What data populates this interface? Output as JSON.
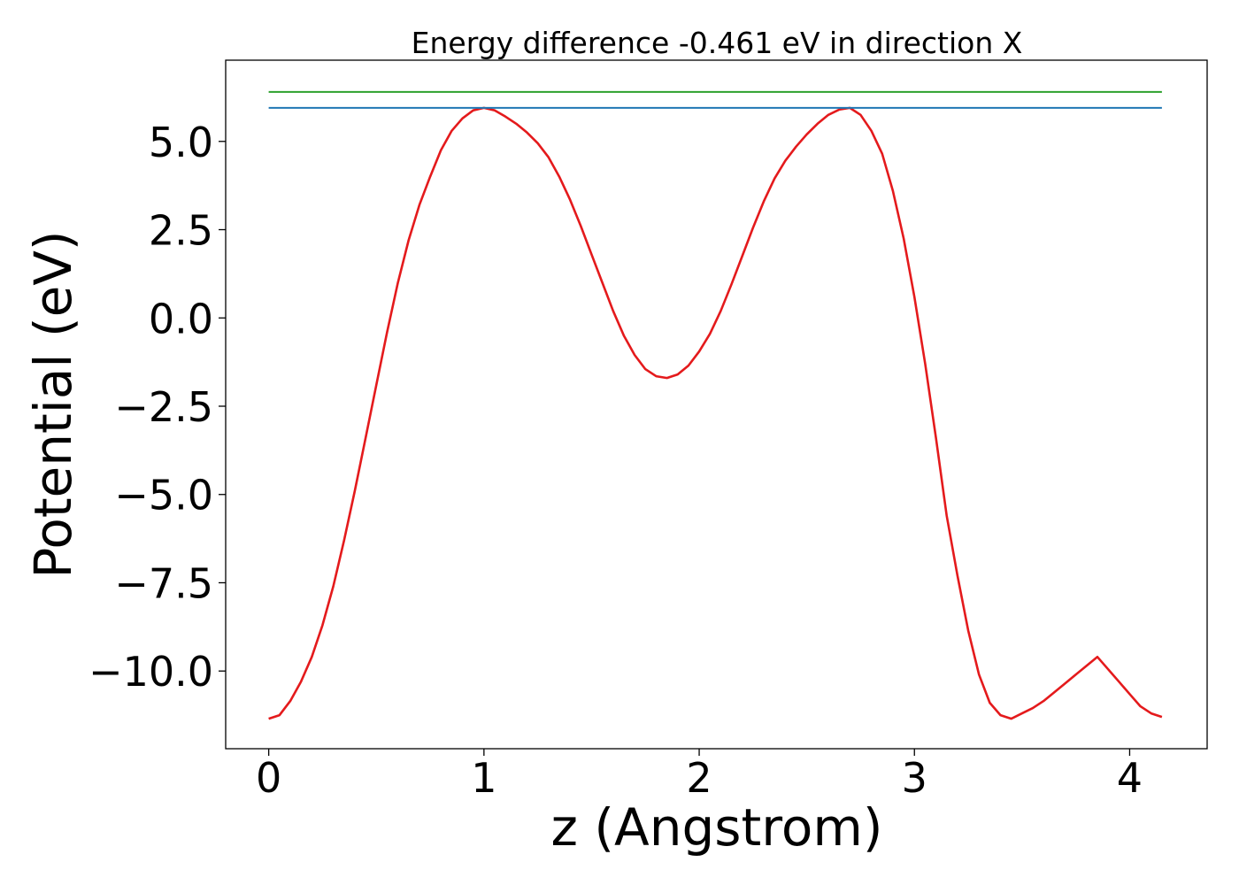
{
  "chart_data": {
    "type": "line",
    "title": "Energy difference -0.461 eV in direction X",
    "xlabel": "z (Angstrom)",
    "ylabel": "Potential (eV)",
    "xlim": [
      -0.2,
      4.36
    ],
    "ylim": [
      -12.2,
      7.3
    ],
    "xticks": [
      0,
      1,
      2,
      3,
      4
    ],
    "xtick_labels": [
      "0",
      "1",
      "2",
      "3",
      "4"
    ],
    "yticks": [
      5.0,
      2.5,
      0.0,
      -2.5,
      -5.0,
      -7.5,
      -10.0
    ],
    "ytick_labels": [
      "5.0",
      "2.5",
      "0.0",
      "−2.5",
      "−5.0",
      "−7.5",
      "−10.0"
    ],
    "grid": false,
    "series": [
      {
        "color": "#e41a1c",
        "x": [
          0.0,
          0.05,
          0.1,
          0.15,
          0.2,
          0.25,
          0.3,
          0.35,
          0.4,
          0.45,
          0.5,
          0.55,
          0.6,
          0.65,
          0.7,
          0.75,
          0.8,
          0.85,
          0.9,
          0.95,
          1.0,
          1.05,
          1.1,
          1.15,
          1.2,
          1.25,
          1.3,
          1.35,
          1.4,
          1.45,
          1.5,
          1.55,
          1.6,
          1.65,
          1.7,
          1.75,
          1.8,
          1.85,
          1.9,
          1.95,
          2.0,
          2.05,
          2.1,
          2.15,
          2.2,
          2.25,
          2.3,
          2.35,
          2.4,
          2.45,
          2.5,
          2.55,
          2.6,
          2.65,
          2.7,
          2.75,
          2.8,
          2.85,
          2.9,
          2.95,
          3.0,
          3.05,
          3.1,
          3.15,
          3.2,
          3.25,
          3.3,
          3.35,
          3.4,
          3.45,
          3.5,
          3.55,
          3.6,
          3.65,
          3.7,
          3.75,
          3.8,
          3.85,
          3.9,
          3.95,
          4.0,
          4.05,
          4.1,
          4.15
        ],
        "y": [
          -11.35,
          -11.25,
          -10.85,
          -10.3,
          -9.6,
          -8.7,
          -7.6,
          -6.3,
          -4.9,
          -3.4,
          -1.9,
          -0.4,
          1.0,
          2.2,
          3.2,
          4.0,
          4.75,
          5.3,
          5.65,
          5.88,
          5.95,
          5.88,
          5.7,
          5.5,
          5.25,
          4.95,
          4.55,
          4.0,
          3.35,
          2.6,
          1.8,
          1.0,
          0.2,
          -0.5,
          -1.05,
          -1.45,
          -1.65,
          -1.7,
          -1.6,
          -1.35,
          -0.95,
          -0.45,
          0.2,
          0.95,
          1.75,
          2.55,
          3.3,
          3.95,
          4.45,
          4.85,
          5.2,
          5.5,
          5.75,
          5.9,
          5.95,
          5.75,
          5.3,
          4.65,
          3.6,
          2.25,
          0.6,
          -1.3,
          -3.4,
          -5.6,
          -7.3,
          -8.85,
          -10.1,
          -10.9,
          -11.25,
          -11.35,
          -11.2,
          -11.05,
          -10.85,
          -10.6,
          -10.35,
          -10.1,
          -9.85,
          -9.6,
          -9.95,
          -10.3,
          -10.65,
          -11.0,
          -11.2,
          -11.3
        ]
      },
      {
        "color": "#1f77b4",
        "x": [
          0.0,
          4.15
        ],
        "y": [
          5.95,
          5.95
        ]
      },
      {
        "color": "#2ca02c",
        "x": [
          0.0,
          4.15
        ],
        "y": [
          6.4,
          6.4
        ]
      }
    ]
  }
}
